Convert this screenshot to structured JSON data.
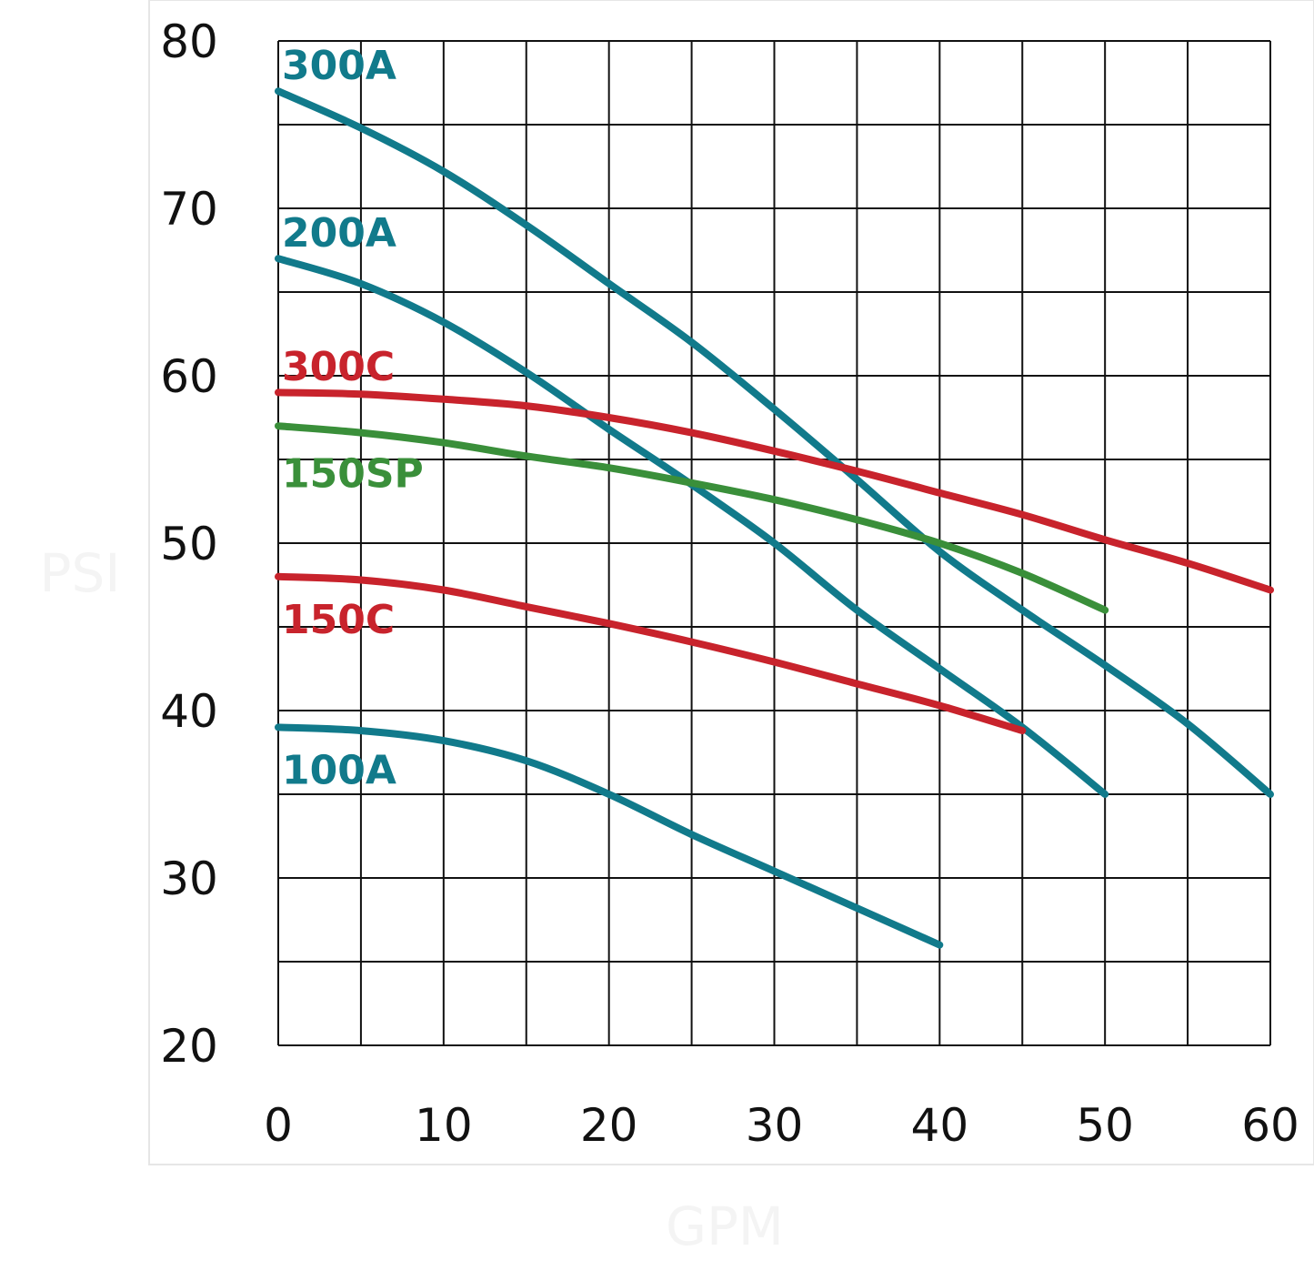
{
  "chart_data": {
    "type": "line",
    "title": "",
    "xlabel": "GPM",
    "ylabel": "PSI",
    "xlim": [
      0,
      60
    ],
    "ylim": [
      20,
      80
    ],
    "xticks": [
      0,
      10,
      20,
      30,
      40,
      50,
      60
    ],
    "yticks": [
      20,
      30,
      40,
      50,
      60,
      70,
      80
    ],
    "grid": true,
    "legend": "inline labels at left of each curve",
    "series": [
      {
        "name": "300A",
        "color": "#117a8b",
        "x": [
          0,
          5,
          10,
          15,
          20,
          25,
          30,
          35,
          40,
          45,
          50,
          55,
          60
        ],
        "y": [
          77,
          74.8,
          72.2,
          69,
          65.5,
          62,
          58,
          53.8,
          49.5,
          46,
          42.7,
          39.2,
          35
        ]
      },
      {
        "name": "200A",
        "color": "#117a8b",
        "x": [
          0,
          5,
          10,
          15,
          20,
          25,
          30,
          35,
          40,
          45,
          50
        ],
        "y": [
          67,
          65.5,
          63.2,
          60.2,
          56.8,
          53.5,
          50,
          46,
          42.5,
          39,
          35
        ]
      },
      {
        "name": "300C",
        "color": "#c8232c",
        "x": [
          0,
          5,
          10,
          15,
          20,
          25,
          30,
          35,
          40,
          45,
          50,
          55,
          60
        ],
        "y": [
          59,
          58.9,
          58.6,
          58.2,
          57.5,
          56.6,
          55.5,
          54.3,
          53,
          51.7,
          50.2,
          48.8,
          47.2
        ]
      },
      {
        "name": "150SP",
        "color": "#3a8f3a",
        "x": [
          0,
          5,
          10,
          15,
          20,
          25,
          30,
          35,
          40,
          45,
          50
        ],
        "y": [
          57,
          56.6,
          56,
          55.2,
          54.5,
          53.6,
          52.6,
          51.4,
          50,
          48.2,
          46
        ]
      },
      {
        "name": "150C",
        "color": "#c8232c",
        "x": [
          0,
          5,
          10,
          15,
          20,
          25,
          30,
          35,
          40,
          45
        ],
        "y": [
          48,
          47.8,
          47.2,
          46.2,
          45.2,
          44.1,
          42.9,
          41.6,
          40.3,
          38.8
        ]
      },
      {
        "name": "100A",
        "color": "#117a8b",
        "x": [
          0,
          5,
          10,
          15,
          20,
          25,
          30,
          35,
          40
        ],
        "y": [
          39,
          38.8,
          38.2,
          37,
          35,
          32.6,
          30.4,
          28.2,
          26
        ]
      }
    ]
  }
}
